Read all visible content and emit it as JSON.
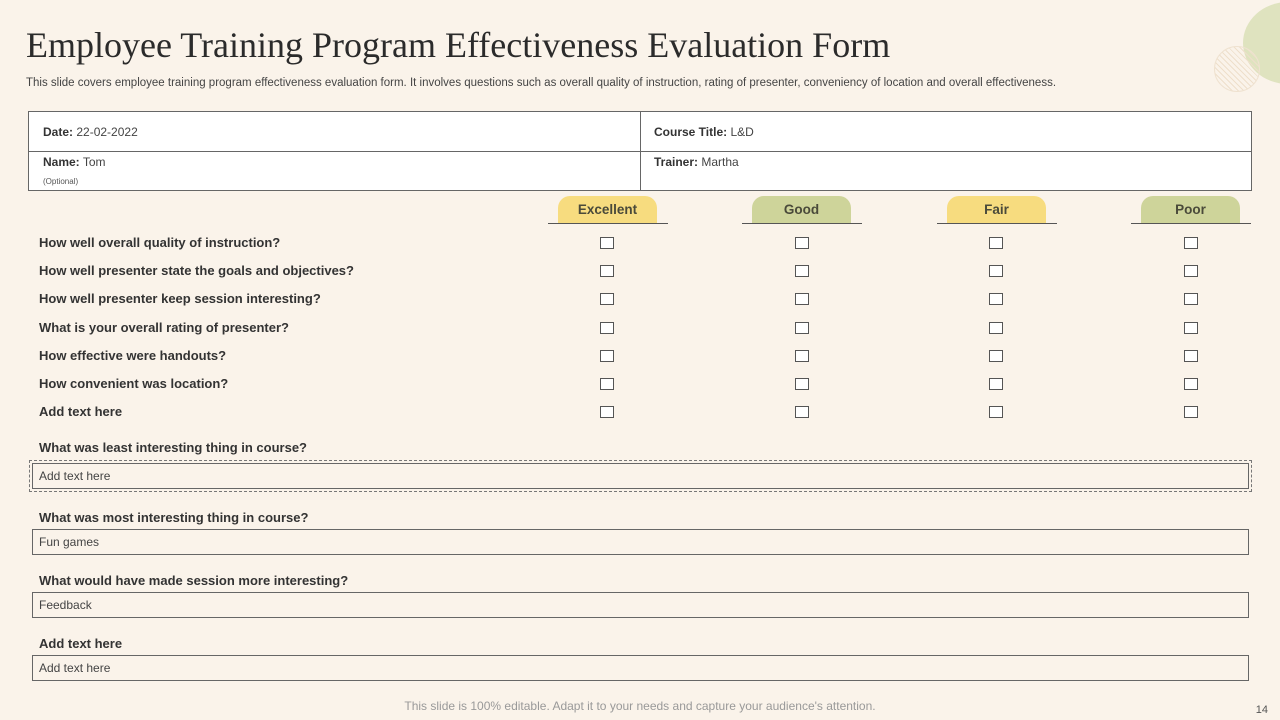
{
  "title": "Employee Training Program Effectiveness Evaluation Form",
  "subtitle": "This slide covers employee training program effectiveness evaluation form. It involves questions such as  overall quality of instruction, rating of presenter, conveniency of location and overall effectiveness.",
  "info": {
    "date_label": "Date:",
    "date_value": "22-02-2022",
    "course_label": "Course Title:",
    "course_value": "L&D",
    "name_label": "Name:",
    "name_value": "Tom",
    "optional": "(Optional)",
    "trainer_label": "Trainer:",
    "trainer_value": "Martha"
  },
  "ratings": [
    "Excellent",
    "Good",
    "Fair",
    "Poor"
  ],
  "questions": [
    "How well overall quality of instruction?",
    "How well presenter state the goals and objectives?",
    "How well presenter keep session  interesting?",
    "What is your overall rating of presenter?",
    "How effective were handouts?",
    "How convenient was location?",
    "Add text here"
  ],
  "open_questions": [
    {
      "label": "What was least interesting thing in course?",
      "value": "Add text here"
    },
    {
      "label": "What was most interesting thing in course?",
      "value": "Fun games"
    },
    {
      "label": "What would have made session  more interesting?",
      "value": "Feedback"
    },
    {
      "label": "Add text here",
      "value": "Add text here"
    }
  ],
  "footer": "This slide is 100% editable. Adapt it to your needs and capture your audience's attention.",
  "page_number": "14",
  "colors": {
    "yellow_pill": "#f7dc7f",
    "green_pill": "#ced49a",
    "background": "#faf3ea"
  }
}
